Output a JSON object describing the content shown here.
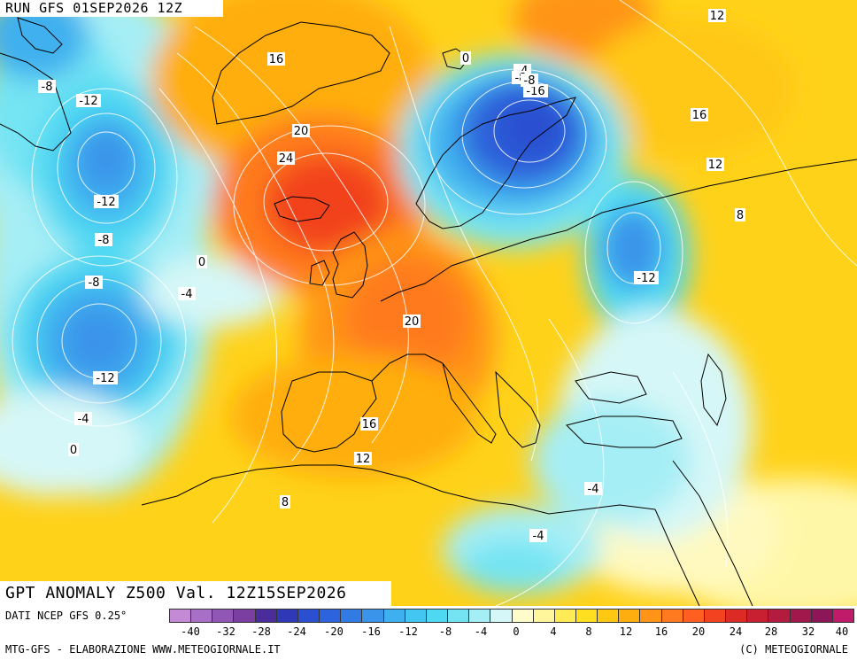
{
  "header": {
    "run": "RUN GFS 01SEP2026 12Z"
  },
  "title": {
    "main": "GPT ANOMALY Z500 Val. 12Z15SEP2026"
  },
  "footer": {
    "source": "DATI NCEP GFS 0.25°",
    "credit": "MTG-GFS - ELABORAZIONE WWW.METEOGIORNALE.IT",
    "copyright": "(C) METEOGIORNALE"
  },
  "scale": {
    "colors": [
      "#c58ad6",
      "#a86fc6",
      "#9057b5",
      "#7a3fa1",
      "#4a2c9a",
      "#2f38b6",
      "#2a4fd0",
      "#2d63dc",
      "#327be4",
      "#3a94ea",
      "#3fb0ef",
      "#43c6f1",
      "#4fd8f2",
      "#74e4f3",
      "#a6eef5",
      "#d6f7f7",
      "#fffccc",
      "#fff59a",
      "#ffeb55",
      "#ffdf20",
      "#ffc812",
      "#ffae10",
      "#ff9418",
      "#ff7a1f",
      "#ff5f20",
      "#f2421f",
      "#dc2a25",
      "#c81f31",
      "#b31b3f",
      "#a0184c",
      "#8c1657",
      "#c01a6a"
    ],
    "ticks": [
      "-40",
      "-32",
      "-28",
      "-24",
      "-20",
      "-16",
      "-12",
      "-8",
      "-4",
      "0",
      "4",
      "8",
      "12",
      "16",
      "20",
      "24",
      "28",
      "32",
      "40"
    ]
  },
  "contour_labels": [
    {
      "text": "12"
    },
    {
      "text": "16"
    },
    {
      "text": "0"
    },
    {
      "text": "-4"
    },
    {
      "text": "-8"
    },
    {
      "text": "-12"
    },
    {
      "text": "-16"
    },
    {
      "text": "-8"
    },
    {
      "text": "-8"
    },
    {
      "text": "16"
    },
    {
      "text": "20"
    },
    {
      "text": "24"
    },
    {
      "text": "12"
    },
    {
      "text": "-12"
    },
    {
      "text": "-8"
    },
    {
      "text": "0"
    },
    {
      "text": "-8"
    },
    {
      "text": "-4"
    },
    {
      "text": "8"
    },
    {
      "text": "-12"
    },
    {
      "text": "20"
    },
    {
      "text": "-12"
    },
    {
      "text": "-4"
    },
    {
      "text": "16"
    },
    {
      "text": "0"
    },
    {
      "text": "12"
    },
    {
      "text": "-4"
    },
    {
      "text": "8"
    },
    {
      "text": "-4"
    }
  ]
}
